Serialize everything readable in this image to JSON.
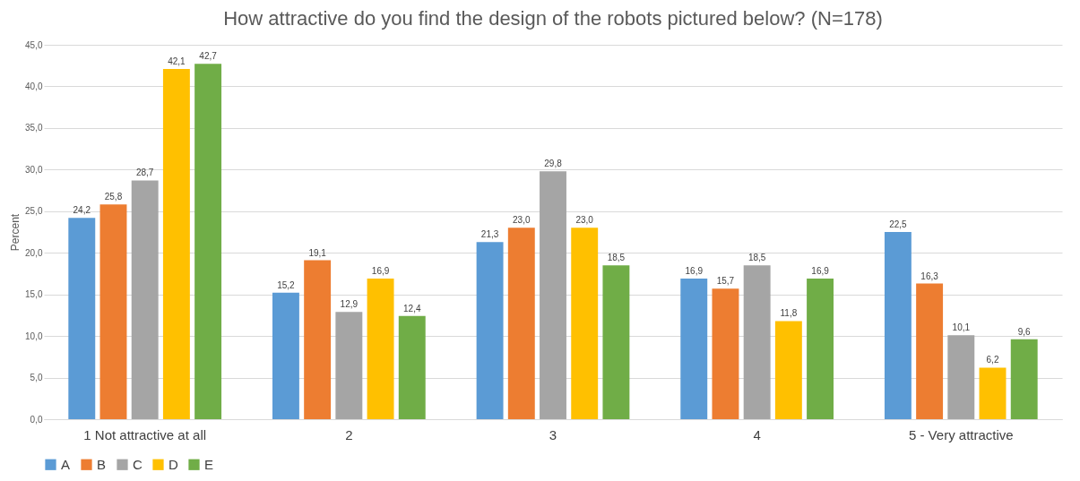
{
  "chart_data": {
    "type": "bar",
    "title": "How attractive do you find the design of the robots pictured below? (N=178)",
    "ylabel": "Percent",
    "categories": [
      "1 Not attractive at all",
      "2",
      "3",
      "4",
      "5 - Very attractive"
    ],
    "series": [
      {
        "name": "A",
        "color": "#5b9bd5",
        "values": [
          24.2,
          15.2,
          21.3,
          16.9,
          22.5
        ],
        "value_labels": [
          "24,2",
          "15,2",
          "21,3",
          "16,9",
          "22,5"
        ]
      },
      {
        "name": "B",
        "color": "#ed7d31",
        "values": [
          25.8,
          19.1,
          23.0,
          15.7,
          16.3
        ],
        "value_labels": [
          "25,8",
          "19,1",
          "23,0",
          "15,7",
          "16,3"
        ]
      },
      {
        "name": "C",
        "color": "#a5a5a5",
        "values": [
          28.7,
          12.9,
          29.8,
          18.5,
          10.1
        ],
        "value_labels": [
          "28,7",
          "12,9",
          "29,8",
          "18,5",
          "10,1"
        ]
      },
      {
        "name": "D",
        "color": "#ffc000",
        "values": [
          42.1,
          16.9,
          23.0,
          11.8,
          6.2
        ],
        "value_labels": [
          "42,1",
          "16,9",
          "23,0",
          "11,8",
          "6,2"
        ]
      },
      {
        "name": "E",
        "color": "#70ad47",
        "values": [
          42.7,
          12.4,
          18.5,
          16.9,
          9.6
        ],
        "value_labels": [
          "42,7",
          "12,4",
          "18,5",
          "16,9",
          "9,6"
        ]
      }
    ],
    "ylim": [
      0,
      45
    ],
    "yticks": [
      {
        "value": 0,
        "label": "0,0"
      },
      {
        "value": 5,
        "label": "5,0"
      },
      {
        "value": 10,
        "label": "10,0"
      },
      {
        "value": 15,
        "label": "15,0"
      },
      {
        "value": 20,
        "label": "20,0"
      },
      {
        "value": 25,
        "label": "25,0"
      },
      {
        "value": 30,
        "label": "30,0"
      },
      {
        "value": 35,
        "label": "35,0"
      },
      {
        "value": 40,
        "label": "40,0"
      },
      {
        "value": 45,
        "label": "45,0"
      }
    ],
    "grid": "y",
    "legend": "bottom"
  }
}
